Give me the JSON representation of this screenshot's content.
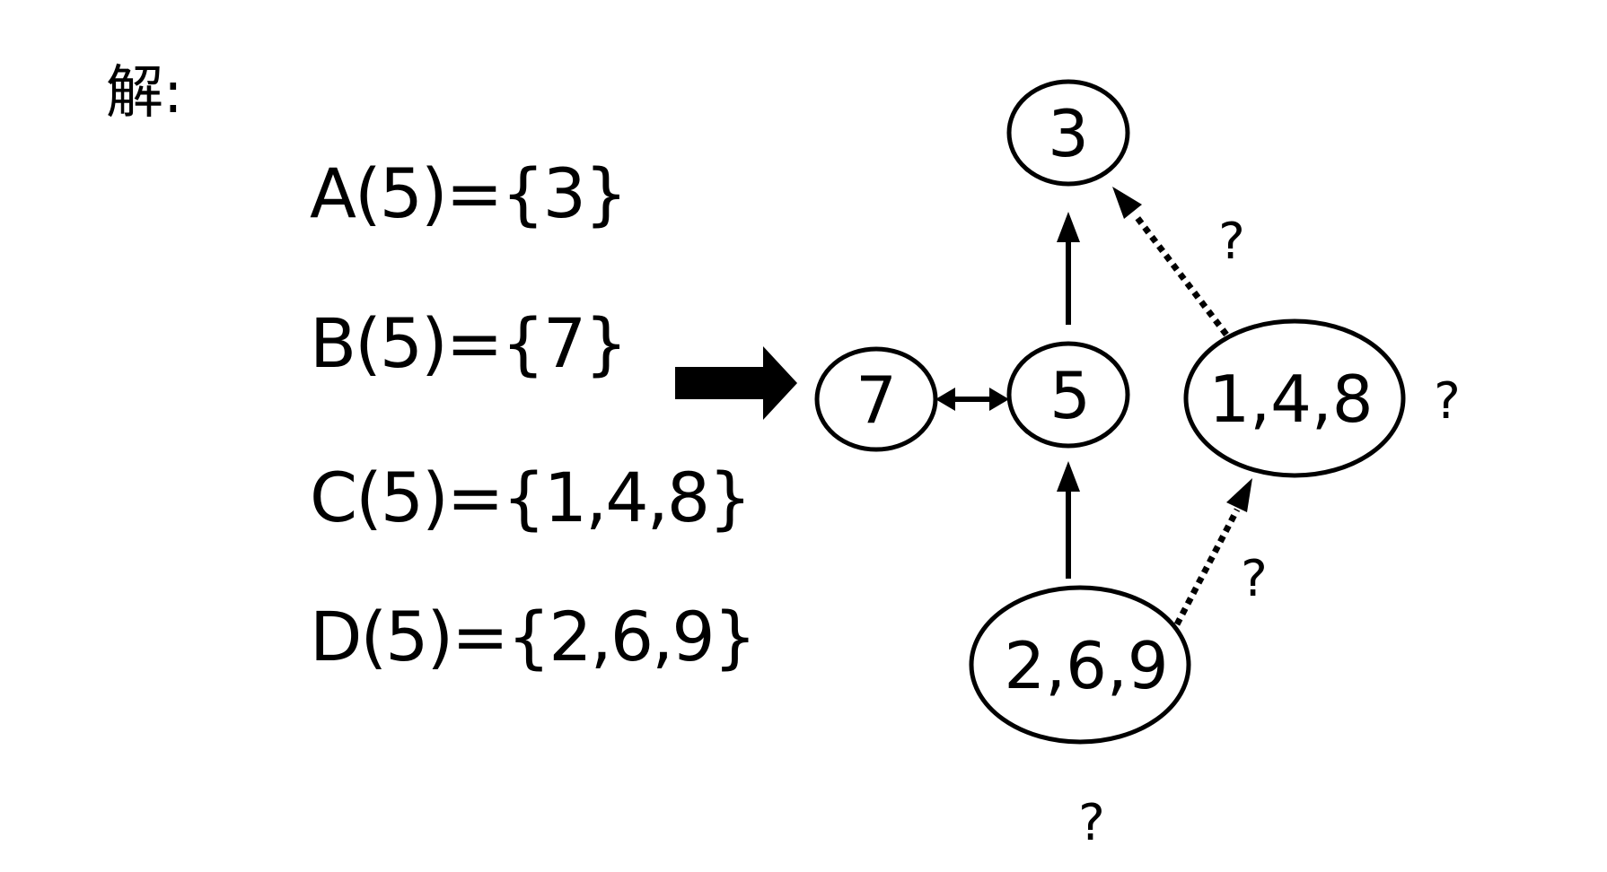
{
  "heading": "解:",
  "equations": {
    "a": "A(5)={3}",
    "b": "B(5)={7}",
    "c": "C(5)={1,4,8}",
    "d": "D(5)={2,6,9}"
  },
  "nodes": {
    "n3": "3",
    "n7": "7",
    "n5": "5",
    "n148": "1,4,8",
    "n269": "2,6,9"
  },
  "question_marks": {
    "top": "?",
    "right": "?",
    "middle": "?",
    "bottom": "?"
  },
  "edges": [
    {
      "from": "5",
      "to": "3",
      "style": "solid"
    },
    {
      "from": "2,6,9",
      "to": "5",
      "style": "solid"
    },
    {
      "from": "7",
      "to": "5",
      "style": "solid-bidirectional"
    },
    {
      "from": "1,4,8",
      "to": "3",
      "style": "dotted"
    },
    {
      "from": "2,6,9",
      "to": "1,4,8",
      "style": "dotted"
    }
  ]
}
